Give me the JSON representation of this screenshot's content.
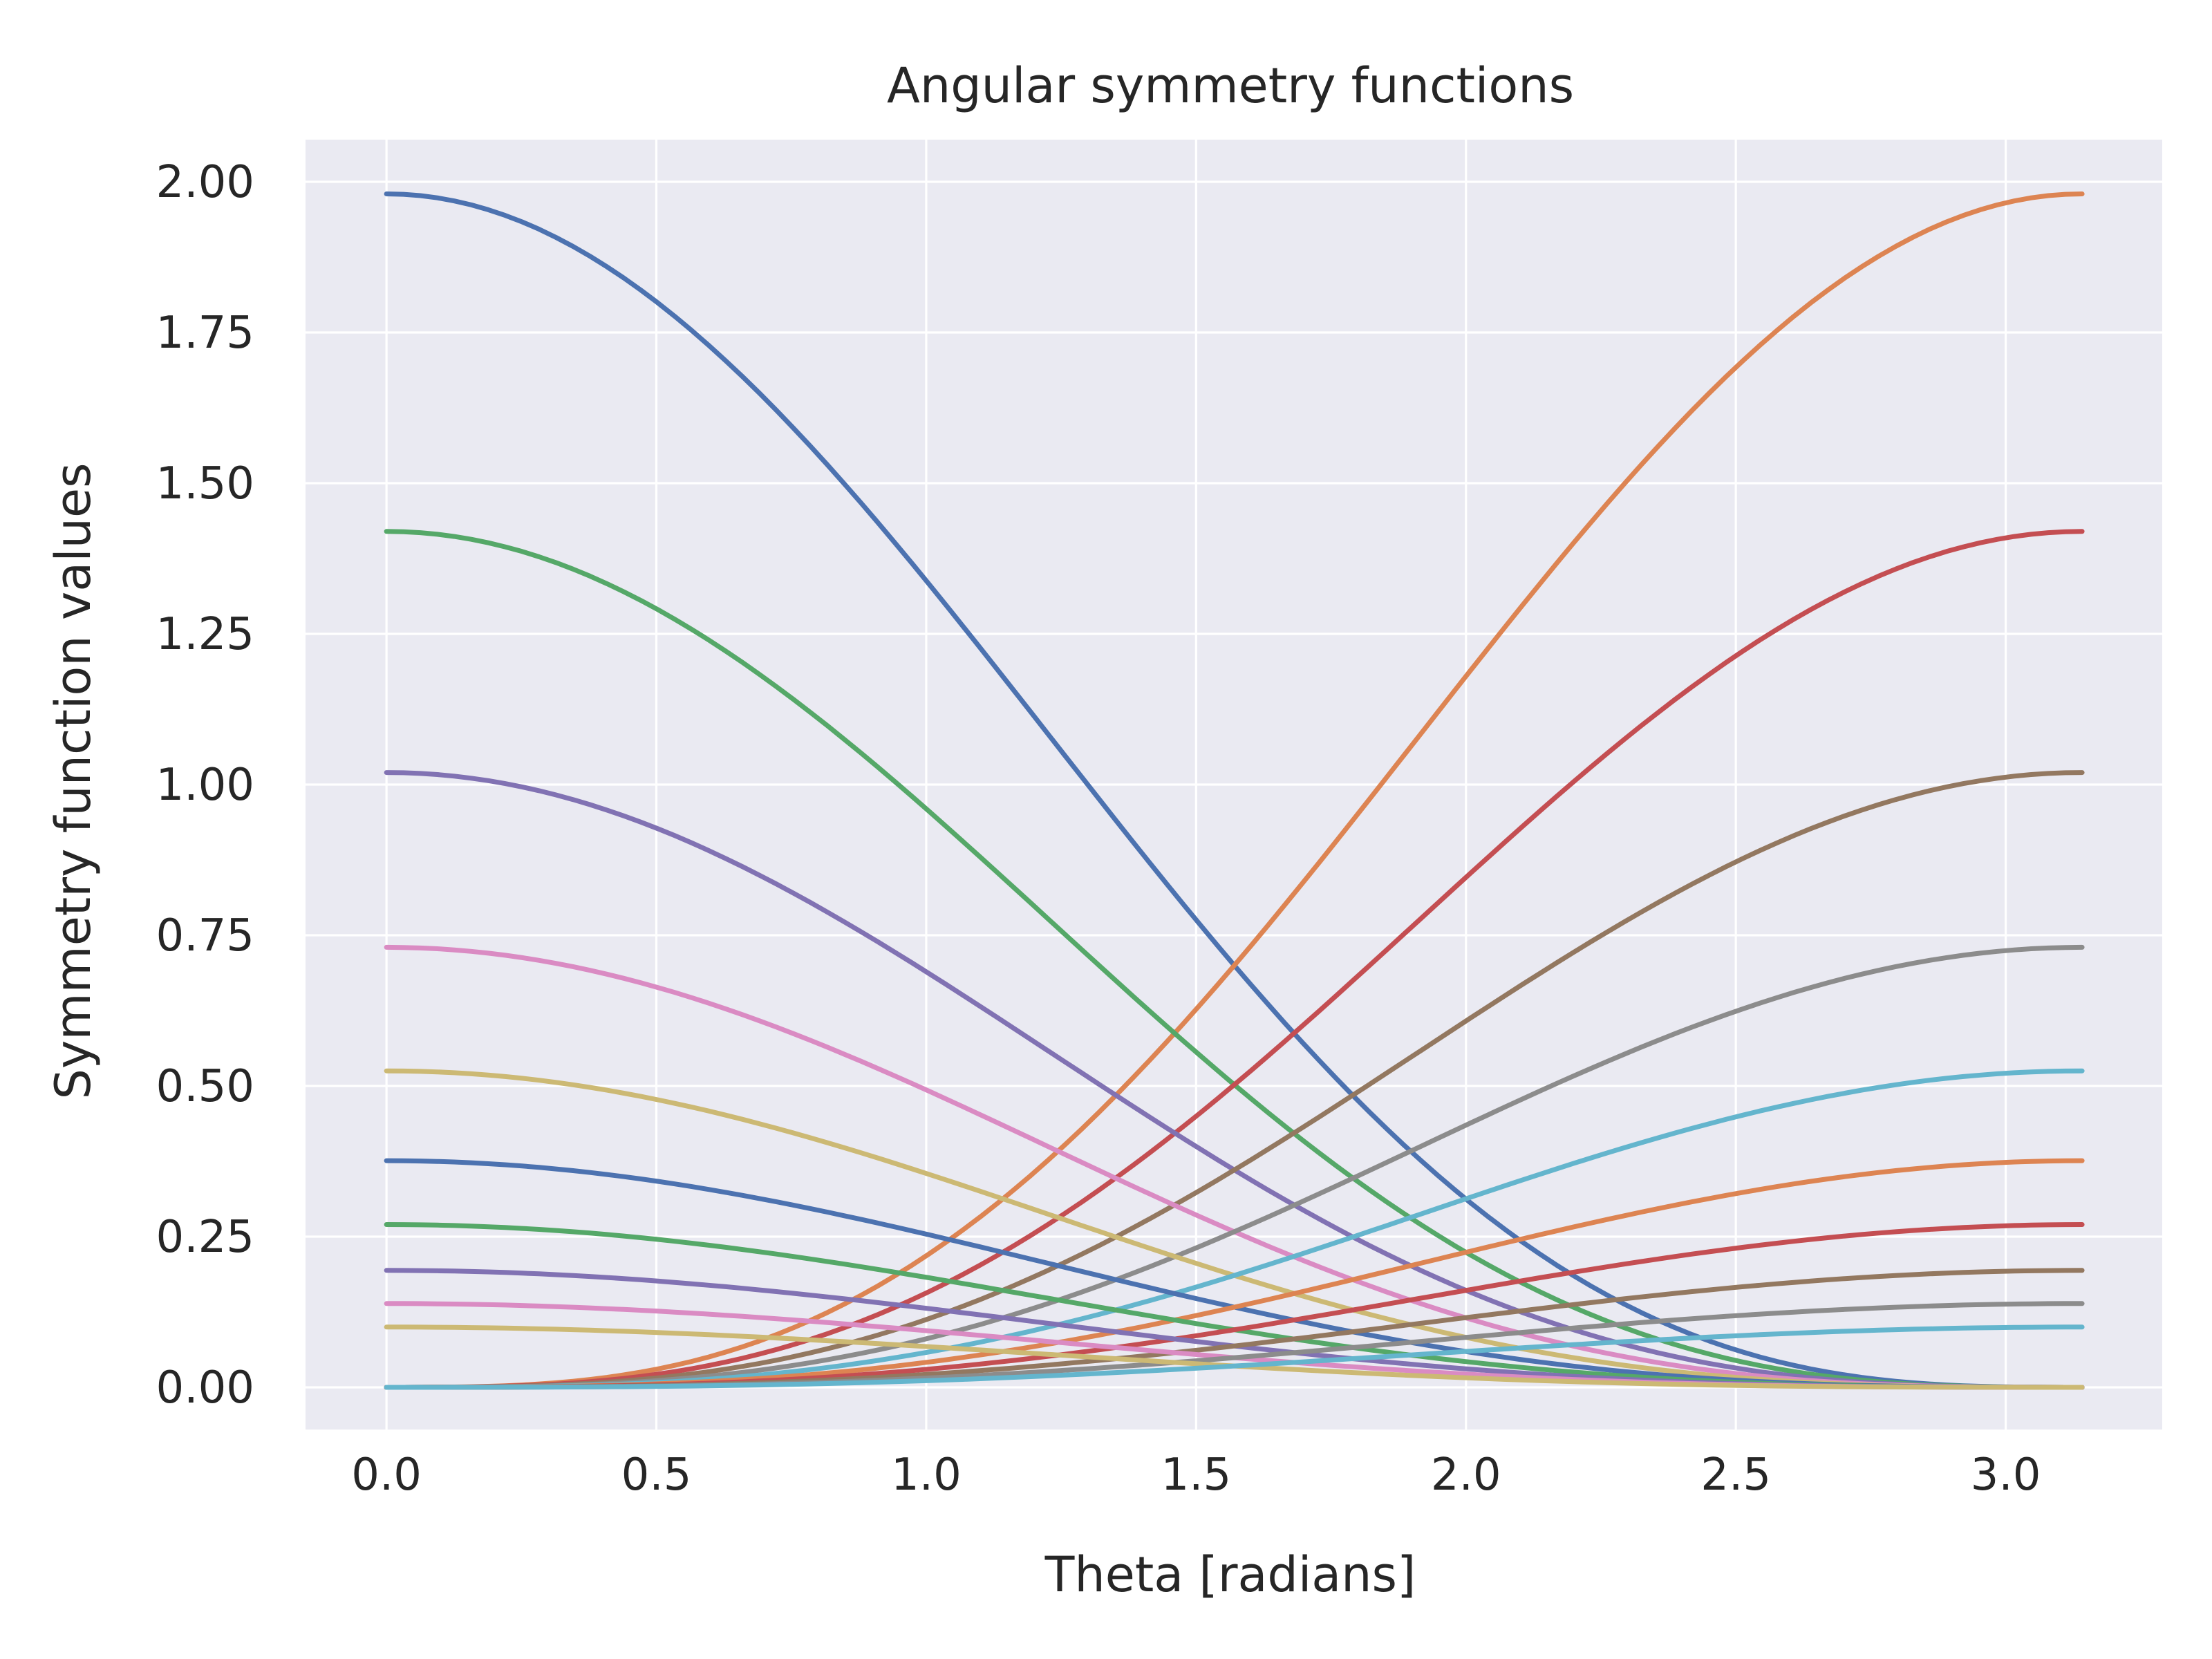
{
  "chart_data": {
    "type": "line",
    "title": "Angular symmetry functions",
    "xlabel": "Theta [radians]",
    "ylabel": "Symmetry function values",
    "xlim": [
      -0.15,
      3.29
    ],
    "ylim": [
      -0.07,
      2.07
    ],
    "x_ticks": [
      "0.0",
      "0.5",
      "1.0",
      "1.5",
      "2.0",
      "2.5",
      "3.0"
    ],
    "y_ticks": [
      "0.00",
      "0.25",
      "0.50",
      "0.75",
      "1.00",
      "1.25",
      "1.50",
      "1.75",
      "2.00"
    ],
    "grid": true,
    "background_color": "#eaeaf2",
    "grid_color": "#ffffff",
    "x_range": [
      0,
      3.14159
    ],
    "samples_per_series": 100,
    "series": [
      {
        "amplitude": 1.98,
        "peak": "left",
        "color": "#4c72b0"
      },
      {
        "amplitude": 1.98,
        "peak": "right",
        "color": "#dd8452"
      },
      {
        "amplitude": 1.42,
        "peak": "left",
        "color": "#55a868"
      },
      {
        "amplitude": 1.42,
        "peak": "right",
        "color": "#c44e52"
      },
      {
        "amplitude": 1.02,
        "peak": "left",
        "color": "#8172b3"
      },
      {
        "amplitude": 1.02,
        "peak": "right",
        "color": "#937860"
      },
      {
        "amplitude": 0.73,
        "peak": "left",
        "color": "#da8bc3"
      },
      {
        "amplitude": 0.73,
        "peak": "right",
        "color": "#8c8c8c"
      },
      {
        "amplitude": 0.525,
        "peak": "left",
        "color": "#ccb974"
      },
      {
        "amplitude": 0.525,
        "peak": "right",
        "color": "#64b5cd"
      },
      {
        "amplitude": 0.376,
        "peak": "left",
        "color": "#4c72b0"
      },
      {
        "amplitude": 0.376,
        "peak": "right",
        "color": "#dd8452"
      },
      {
        "amplitude": 0.27,
        "peak": "left",
        "color": "#55a868"
      },
      {
        "amplitude": 0.27,
        "peak": "right",
        "color": "#c44e52"
      },
      {
        "amplitude": 0.194,
        "peak": "left",
        "color": "#8172b3"
      },
      {
        "amplitude": 0.194,
        "peak": "right",
        "color": "#937860"
      },
      {
        "amplitude": 0.139,
        "peak": "left",
        "color": "#da8bc3"
      },
      {
        "amplitude": 0.139,
        "peak": "right",
        "color": "#8c8c8c"
      },
      {
        "amplitude": 0.1,
        "peak": "left",
        "color": "#ccb974"
      },
      {
        "amplitude": 0.1,
        "peak": "right",
        "color": "#64b5cd"
      }
    ]
  }
}
